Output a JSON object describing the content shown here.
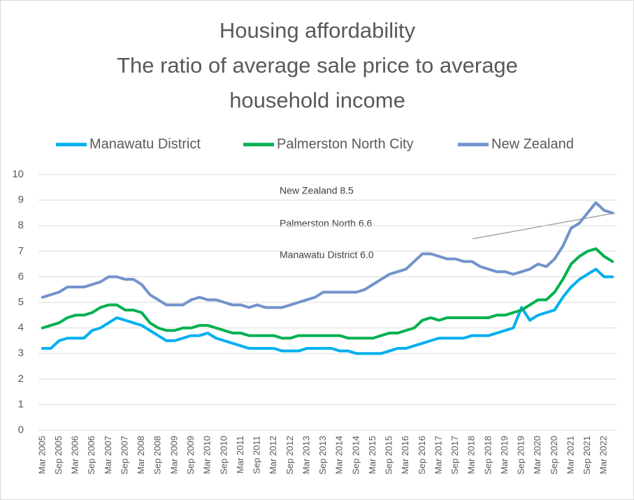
{
  "chart_data": {
    "type": "line",
    "title": [
      "Housing affordability",
      "The ratio of average sale price to average",
      "household income"
    ],
    "categories": [
      "Mar 2005",
      null,
      "Sep 2005",
      null,
      "Mar 2006",
      null,
      "Sep 2006",
      null,
      "Mar 2007",
      null,
      "Sep 2007",
      null,
      "Mar 2008",
      null,
      "Sep 2008",
      null,
      "Mar 2009",
      null,
      "Sep 2009",
      null,
      "Mar 2010",
      null,
      "Sep 2010",
      null,
      "Mar 2011",
      null,
      "Sep 2011",
      null,
      "Mar 2012",
      null,
      "Sep 2012",
      null,
      "Mar 2013",
      null,
      "Sep 2013",
      null,
      "Mar 2014",
      null,
      "Sep 2014",
      null,
      "Mar 2015",
      null,
      "Sep 2015",
      null,
      "Mar 2016",
      null,
      "Sep 2016",
      null,
      "Mar 2017",
      null,
      "Sep 2017",
      null,
      "Mar 2018",
      null,
      "Sep 2018",
      null,
      "Mar 2019",
      null,
      "Sep 2019",
      null,
      "Mar 2020",
      null,
      "Sep 2020",
      null,
      "Mar 2021",
      null,
      "Sep 2021",
      null,
      "Mar 2022",
      null
    ],
    "series": [
      {
        "name": "Manawatu District",
        "color": "#00b0f0",
        "values": [
          3.2,
          3.2,
          3.5,
          3.6,
          3.6,
          3.6,
          3.9,
          4.0,
          4.2,
          4.4,
          4.3,
          4.2,
          4.1,
          3.9,
          3.7,
          3.5,
          3.5,
          3.6,
          3.7,
          3.7,
          3.8,
          3.6,
          3.5,
          3.4,
          3.3,
          3.2,
          3.2,
          3.2,
          3.2,
          3.1,
          3.1,
          3.1,
          3.2,
          3.2,
          3.2,
          3.2,
          3.1,
          3.1,
          3.0,
          3.0,
          3.0,
          3.0,
          3.1,
          3.2,
          3.2,
          3.3,
          3.4,
          3.5,
          3.6,
          3.6,
          3.6,
          3.6,
          3.7,
          3.7,
          3.7,
          3.8,
          3.9,
          4.0,
          4.8,
          4.3,
          4.5,
          4.6,
          4.7,
          5.2,
          5.6,
          5.9,
          6.1,
          6.3,
          6.0,
          6.0
        ]
      },
      {
        "name": "Palmerston North City",
        "color": "#00b050",
        "values": [
          4.0,
          4.1,
          4.2,
          4.4,
          4.5,
          4.5,
          4.6,
          4.8,
          4.9,
          4.9,
          4.7,
          4.7,
          4.6,
          4.2,
          4.0,
          3.9,
          3.9,
          4.0,
          4.0,
          4.1,
          4.1,
          4.0,
          3.9,
          3.8,
          3.8,
          3.7,
          3.7,
          3.7,
          3.7,
          3.6,
          3.6,
          3.7,
          3.7,
          3.7,
          3.7,
          3.7,
          3.7,
          3.6,
          3.6,
          3.6,
          3.6,
          3.7,
          3.8,
          3.8,
          3.9,
          4.0,
          4.3,
          4.4,
          4.3,
          4.4,
          4.4,
          4.4,
          4.4,
          4.4,
          4.4,
          4.5,
          4.5,
          4.6,
          4.7,
          4.9,
          5.1,
          5.1,
          5.4,
          5.9,
          6.5,
          6.8,
          7.0,
          7.1,
          6.8,
          6.6
        ]
      },
      {
        "name": "New Zealand",
        "color": "#7293cb",
        "values": [
          5.2,
          5.3,
          5.4,
          5.6,
          5.6,
          5.6,
          5.7,
          5.8,
          6.0,
          6.0,
          5.9,
          5.9,
          5.7,
          5.3,
          5.1,
          4.9,
          4.9,
          4.9,
          5.1,
          5.2,
          5.1,
          5.1,
          5.0,
          4.9,
          4.9,
          4.8,
          4.9,
          4.8,
          4.8,
          4.8,
          4.9,
          5.0,
          5.1,
          5.2,
          5.4,
          5.4,
          5.4,
          5.4,
          5.4,
          5.5,
          5.7,
          5.9,
          6.1,
          6.2,
          6.3,
          6.6,
          6.9,
          6.9,
          6.8,
          6.7,
          6.7,
          6.6,
          6.6,
          6.4,
          6.3,
          6.2,
          6.2,
          6.1,
          6.2,
          6.3,
          6.5,
          6.4,
          6.7,
          7.2,
          7.9,
          8.1,
          8.5,
          8.9,
          8.6,
          8.5
        ]
      }
    ],
    "annotations": [
      "New Zealand  8.5",
      "Palmerston North  6.6",
      "Manawatu District 6.0"
    ],
    "ylim": [
      0,
      10
    ],
    "yticks": [
      0,
      1,
      2,
      3,
      4,
      5,
      6,
      7,
      8,
      9,
      10
    ],
    "grid": true,
    "legend": "top"
  }
}
